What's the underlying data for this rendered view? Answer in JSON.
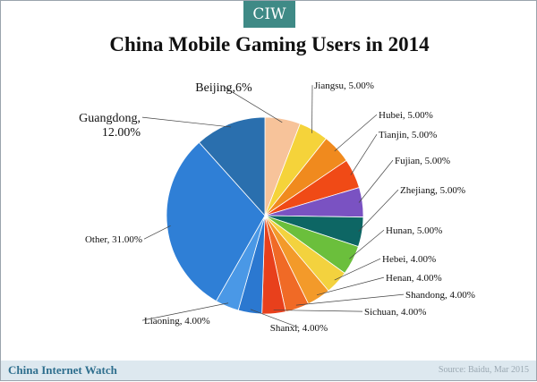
{
  "header": {
    "badge": "CIW"
  },
  "chart_data": {
    "type": "pie",
    "title": "China Mobile Gaming Users in 2014",
    "legend": "none",
    "slices": [
      {
        "label": "Beijing,6%",
        "value": 6,
        "color": "#f7c39a"
      },
      {
        "label": "Jiangsu, 5.00%",
        "value": 5,
        "color": "#f5d33a"
      },
      {
        "label": "Hubei, 5.00%",
        "value": 5,
        "color": "#f08a1e"
      },
      {
        "label": "Tianjin, 5.00%",
        "value": 5,
        "color": "#f04a16"
      },
      {
        "label": "Fujian, 5.00%",
        "value": 5,
        "color": "#7a52c2"
      },
      {
        "label": "Zhejiang, 5.00%",
        "value": 5,
        "color": "#0d6664"
      },
      {
        "label": "Hunan, 5.00%",
        "value": 5,
        "color": "#6bbf3c"
      },
      {
        "label": "Hebei, 4.00%",
        "value": 4,
        "color": "#f3d23e"
      },
      {
        "label": "Henan, 4.00%",
        "value": 4,
        "color": "#f39a2a"
      },
      {
        "label": "Shandong, 4.00%",
        "value": 4,
        "color": "#f06a26"
      },
      {
        "label": "Sichuan, 4.00%",
        "value": 4,
        "color": "#e8401c"
      },
      {
        "label": "Shanxi, 4.00%",
        "value": 4,
        "color": "#2b78d0"
      },
      {
        "label": "Liaoning, 4.00%",
        "value": 4,
        "color": "#4a98e6"
      },
      {
        "label": "Other, 31.00%",
        "value": 31,
        "color": "#2f7fd6"
      },
      {
        "label": "Guangdong,\n12.00%",
        "value": 12,
        "color": "#2a6fae"
      }
    ]
  },
  "footer": {
    "brand": "China Internet Watch",
    "source": "Source: Baidu, Mar 2015"
  }
}
